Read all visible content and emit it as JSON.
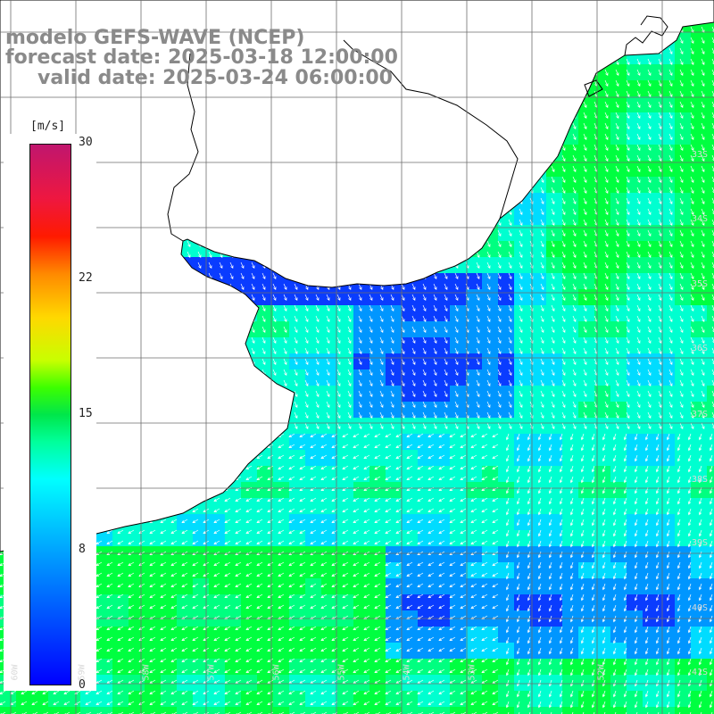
{
  "title": {
    "model": "modelo GEFS-WAVE (NCEP)",
    "forecast": "forecast date: 2025-03-18 12:00:00",
    "valid": "valid date: 2025-03-24 06:00:00"
  },
  "colorbar": {
    "unit": "[m/s]",
    "ticks": [
      "30",
      "22",
      "15",
      "8",
      "0"
    ],
    "tick_values": [
      30,
      22,
      15,
      8,
      0
    ]
  },
  "grid_labels": {
    "lat": [
      "33S",
      "34S",
      "35S",
      "36S",
      "37S",
      "38S",
      "39S",
      "40S",
      "41S"
    ],
    "lon": [
      "60W",
      "59W",
      "58W",
      "57W",
      "56W",
      "55W",
      "54W",
      "53W",
      "52W"
    ]
  },
  "colors": {
    "title": "#8a8a8a",
    "land": "#ffffff",
    "coast": "#000000",
    "grid": "#6e6e6e",
    "arrow": "#ffffff",
    "wind_strong": "#0000ff",
    "wind_moderate": "#00ffff",
    "wind_fresh": "#00ff40"
  }
}
